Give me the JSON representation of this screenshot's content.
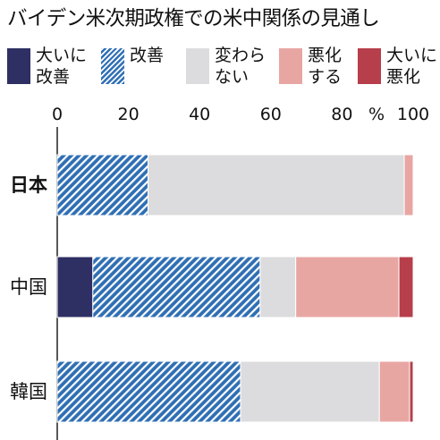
{
  "title": "バイデン米次期政権での米中関係の見通し",
  "legend": [
    {
      "label": "大いに\n改善",
      "color": "#2e2f63",
      "pattern": "solid"
    },
    {
      "label": "改善",
      "color": "#2f6fb4",
      "pattern": "hatch"
    },
    {
      "label": "変わら\nない",
      "color": "#dcdcde",
      "pattern": "solid"
    },
    {
      "label": "悪化\nする",
      "color": "#e8a6a3",
      "pattern": "solid"
    },
    {
      "label": "大いに\n悪化",
      "color": "#b73e4b",
      "pattern": "solid"
    }
  ],
  "chart_data": {
    "type": "bar",
    "orientation": "horizontal",
    "stacked": true,
    "title": "バイデン米次期政権での米中関係の見通し",
    "xlim": [
      0,
      100
    ],
    "x_ticks": [
      0,
      20,
      40,
      60,
      80,
      100
    ],
    "x_unit": "%",
    "categories": [
      "日本",
      "中国",
      "韓国"
    ],
    "bold_category": "日本",
    "series": [
      {
        "name": "大いに改善",
        "values": [
          0,
          10,
          0
        ]
      },
      {
        "name": "改善",
        "values": [
          25.5,
          47,
          51.5
        ]
      },
      {
        "name": "変わらない",
        "values": [
          72,
          10,
          39
        ]
      },
      {
        "name": "悪化する",
        "values": [
          2.5,
          29,
          8.5
        ]
      },
      {
        "name": "大いに悪化",
        "values": [
          0,
          4,
          1
        ]
      }
    ]
  }
}
